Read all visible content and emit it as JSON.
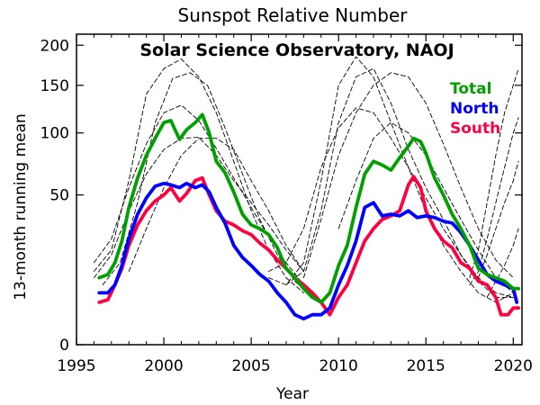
{
  "chart_data": {
    "type": "line",
    "title": "Sunspot Relative Number",
    "subtitle": "Solar Science Observatory, NAOJ",
    "xlabel": "Year",
    "ylabel": "13-month running mean",
    "xlim": [
      1995,
      2020.5
    ],
    "ylim": [
      0,
      215
    ],
    "y_scale": "square-root",
    "x_ticks": [
      "1995",
      "2000",
      "2005",
      "2010",
      "2015",
      "2020"
    ],
    "y_ticks": [
      "0",
      "50",
      "100",
      "150",
      "200"
    ],
    "legend_placement": "top-right",
    "series": [
      {
        "name": "Total",
        "color": "#00a000",
        "style": "solid",
        "x": [
          1996.3,
          1996.8,
          1997.2,
          1997.6,
          1998.0,
          1998.5,
          1999.0,
          1999.5,
          2000.0,
          2000.4,
          2000.9,
          2001.3,
          2001.8,
          2002.2,
          2002.6,
          2003.0,
          2003.5,
          2004.0,
          2004.5,
          2005.0,
          2005.5,
          2006.0,
          2006.5,
          2007.0,
          2007.5,
          2008.0,
          2008.5,
          2009.0,
          2009.5,
          2010.0,
          2010.5,
          2011.0,
          2011.5,
          2012.0,
          2012.5,
          2013.0,
          2013.5,
          2014.0,
          2014.3,
          2014.7,
          2015.0,
          2015.5,
          2016.0,
          2016.5,
          2017.0,
          2017.5,
          2018.0,
          2018.5,
          2019.0,
          2019.5,
          2020.0,
          2020.3
        ],
        "y": [
          10,
          11,
          15,
          24,
          42,
          62,
          80,
          95,
          110,
          112,
          94,
          103,
          110,
          118,
          100,
          75,
          66,
          52,
          38,
          32,
          30,
          27,
          21,
          13,
          10,
          7,
          5,
          4,
          6,
          14,
          22,
          42,
          65,
          75,
          72,
          68,
          78,
          88,
          95,
          92,
          82,
          62,
          50,
          38,
          30,
          22,
          13,
          11,
          10,
          9,
          7,
          7
        ]
      },
      {
        "name": "North",
        "color": "#0000ff",
        "style": "solid",
        "x": [
          1996.3,
          1996.8,
          1997.2,
          1997.6,
          1998.0,
          1998.5,
          1999.0,
          1999.5,
          2000.0,
          2000.4,
          2000.9,
          2001.3,
          2001.8,
          2002.2,
          2002.6,
          2003.0,
          2003.5,
          2004.0,
          2004.5,
          2005.0,
          2005.5,
          2006.0,
          2006.5,
          2007.0,
          2007.5,
          2008.0,
          2008.5,
          2009.0,
          2009.5,
          2010.0,
          2010.5,
          2011.0,
          2011.5,
          2012.0,
          2012.5,
          2013.0,
          2013.5,
          2014.0,
          2014.5,
          2015.0,
          2015.5,
          2016.0,
          2016.5,
          2017.0,
          2017.5,
          2018.0,
          2018.5,
          2019.0,
          2019.5,
          2020.0,
          2020.2
        ],
        "y": [
          6,
          6,
          8,
          14,
          25,
          38,
          48,
          56,
          58,
          57,
          55,
          58,
          55,
          57,
          52,
          42,
          33,
          22,
          17,
          14,
          11,
          9,
          6,
          4,
          2,
          1.5,
          2,
          2,
          3,
          8,
          14,
          24,
          42,
          45,
          37,
          38,
          37,
          40,
          36,
          37,
          36,
          34,
          33,
          28,
          22,
          16,
          11,
          9,
          8,
          7,
          4
        ]
      },
      {
        "name": "South",
        "color": "#ff0040",
        "style": "solid",
        "x": [
          1996.3,
          1996.8,
          1997.2,
          1997.6,
          1998.0,
          1998.5,
          1999.0,
          1999.5,
          2000.0,
          2000.4,
          2000.9,
          2001.3,
          2001.8,
          2002.2,
          2002.6,
          2003.0,
          2003.5,
          2004.0,
          2004.5,
          2005.0,
          2005.5,
          2006.0,
          2006.5,
          2007.0,
          2007.5,
          2008.0,
          2008.5,
          2009.0,
          2009.5,
          2010.0,
          2010.5,
          2011.0,
          2011.5,
          2012.0,
          2012.5,
          2013.0,
          2013.5,
          2014.0,
          2014.3,
          2014.7,
          2015.0,
          2015.5,
          2016.0,
          2016.5,
          2017.0,
          2017.5,
          2018.0,
          2018.5,
          2019.0,
          2019.3,
          2019.7,
          2020.0,
          2020.3
        ],
        "y": [
          4,
          4.5,
          8,
          13,
          22,
          32,
          40,
          46,
          50,
          55,
          46,
          51,
          60,
          62,
          50,
          40,
          34,
          32,
          29,
          27,
          23,
          20,
          16,
          13,
          10,
          8,
          6,
          4,
          2,
          5,
          8,
          15,
          24,
          30,
          35,
          37,
          40,
          57,
          63,
          55,
          40,
          30,
          24,
          21,
          15,
          13,
          9,
          8,
          5,
          2,
          2,
          3,
          3
        ]
      },
      {
        "style": "dashed",
        "color": "#000000",
        "x": [
          1996,
          1997,
          1998,
          1999,
          2000,
          2001,
          2002,
          2003,
          2004,
          2005,
          2006,
          2007,
          2008
        ],
        "y": [
          12,
          20,
          60,
          140,
          170,
          182,
          160,
          120,
          75,
          40,
          20,
          10,
          6
        ]
      },
      {
        "style": "dashed",
        "color": "#000000",
        "x": [
          1996.5,
          1997.5,
          1998.5,
          1999.5,
          2000.5,
          2001.5,
          2002.5,
          2003.5,
          2004.5,
          2005.5,
          2006.5,
          2007.5,
          2008.5
        ],
        "y": [
          8,
          15,
          45,
          110,
          158,
          165,
          150,
          105,
          65,
          35,
          18,
          9,
          5
        ]
      },
      {
        "style": "dashed",
        "color": "#000000",
        "x": [
          1996,
          1997,
          1998,
          1999,
          2000,
          2001,
          2002,
          2003,
          2004,
          2005,
          2006,
          2007,
          2008
        ],
        "y": [
          15,
          25,
          55,
          90,
          120,
          128,
          112,
          86,
          62,
          42,
          26,
          15,
          8
        ]
      },
      {
        "style": "dashed",
        "color": "#000000",
        "x": [
          1996,
          1997,
          1998,
          1999,
          2000,
          2001,
          2002,
          2003,
          2004,
          2005,
          2006,
          2007,
          2008
        ],
        "y": [
          10,
          18,
          40,
          65,
          85,
          95,
          96,
          80,
          60,
          45,
          32,
          20,
          12
        ]
      },
      {
        "style": "dashed",
        "color": "#000000",
        "x": [
          1998,
          1999,
          2000,
          2001,
          2002,
          2003,
          2004,
          2005,
          2006,
          2007,
          2008
        ],
        "y": [
          12,
          30,
          55,
          80,
          95,
          95,
          85,
          60,
          40,
          22,
          12
        ]
      },
      {
        "style": "dashed",
        "color": "#000000",
        "x": [
          2006,
          2007,
          2008,
          2009,
          2010,
          2011,
          2012,
          2013,
          2014,
          2015,
          2016,
          2017,
          2018,
          2019,
          2020
        ],
        "y": [
          10,
          8,
          15,
          60,
          150,
          185,
          160,
          110,
          70,
          40,
          22,
          12,
          6,
          4,
          6
        ]
      },
      {
        "style": "dashed",
        "color": "#000000",
        "x": [
          2007,
          2008,
          2009,
          2010,
          2011,
          2012,
          2013,
          2014,
          2015,
          2016,
          2017,
          2018,
          2019,
          2020
        ],
        "y": [
          8,
          12,
          40,
          110,
          160,
          170,
          130,
          85,
          55,
          35,
          18,
          9,
          5,
          5
        ]
      },
      {
        "style": "dashed",
        "color": "#000000",
        "x": [
          2006,
          2007,
          2008,
          2009,
          2010,
          2011,
          2012,
          2013,
          2014,
          2015,
          2016,
          2017,
          2018,
          2019,
          2020
        ],
        "y": [
          12,
          15,
          30,
          70,
          105,
          125,
          120,
          95,
          70,
          48,
          30,
          18,
          10,
          6,
          5
        ]
      },
      {
        "style": "dashed",
        "color": "#000000",
        "x": [
          2008,
          2009,
          2010,
          2011,
          2012,
          2013,
          2014,
          2015,
          2016,
          2017,
          2018,
          2019,
          2020
        ],
        "y": [
          10,
          35,
          80,
          120,
          150,
          165,
          160,
          130,
          90,
          55,
          30,
          16,
          10
        ]
      },
      {
        "style": "dashed",
        "color": "#000000",
        "x": [
          2010,
          2011,
          2012,
          2013,
          2014,
          2015,
          2016,
          2017,
          2018,
          2019,
          2020
        ],
        "y": [
          30,
          60,
          95,
          110,
          100,
          80,
          55,
          35,
          20,
          10,
          6
        ]
      },
      {
        "style": "dashed",
        "color": "#000000",
        "x": [
          2017.5,
          2018,
          2018.5,
          2019,
          2019.5,
          2020,
          2020.3
        ],
        "y": [
          10,
          20,
          45,
          80,
          120,
          150,
          170
        ]
      },
      {
        "style": "dashed",
        "color": "#000000",
        "x": [
          2017.5,
          2018,
          2018.5,
          2019,
          2019.5,
          2020,
          2020.3
        ],
        "y": [
          8,
          12,
          25,
          45,
          70,
          100,
          115
        ]
      },
      {
        "style": "dashed",
        "color": "#000000",
        "x": [
          2018,
          2018.5,
          2019,
          2019.5,
          2020,
          2020.3
        ],
        "y": [
          10,
          18,
          30,
          45,
          60,
          75
        ]
      },
      {
        "style": "dashed",
        "color": "#000000",
        "x": [
          2018.5,
          2019,
          2019.5,
          2020,
          2020.3
        ],
        "y": [
          5,
          9,
          14,
          22,
          30
        ]
      }
    ]
  }
}
